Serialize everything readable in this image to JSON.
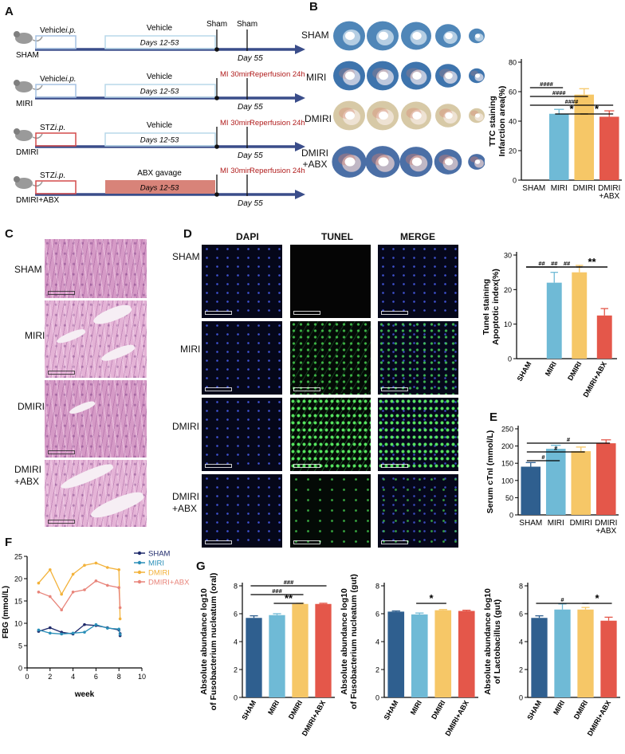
{
  "panel_letters": {
    "a": "A",
    "b": "B",
    "c": "C",
    "d": "D",
    "e": "E",
    "f": "F",
    "g": "G"
  },
  "colors": {
    "sham": "#2f5f8f",
    "miri": "#6fbad6",
    "dmiri": "#f6c767",
    "dmiri_abx": "#e4574a",
    "arrow": "#3a4d8a",
    "red_text": "#b01c1c",
    "f_sham": "#1f2a6b",
    "f_miri": "#2a8fb8",
    "f_dmiri": "#f3b23a",
    "f_dmiriabx": "#e8847a"
  },
  "panel_a": {
    "rows": [
      {
        "group": "SHAM",
        "pre": "Vehicle",
        "pre_route": "i.p.",
        "mid": "Vehicle",
        "days": "Days 12-53",
        "end_top": "Sham",
        "end_top2": "Sham",
        "end_bottom": "Day 55",
        "surgery": "",
        "reperfusion": "",
        "box_style": "outline-blue"
      },
      {
        "group": "MIRI",
        "pre": "Vehicle",
        "pre_route": "i.p.",
        "mid": "Vehicle",
        "days": "Days 12-53",
        "end_top": "",
        "end_top2": "",
        "end_bottom": "Day 55",
        "surgery": "MI 30min",
        "reperfusion": "Reperfusion 24h",
        "box_style": "outline-blue"
      },
      {
        "group": "DMIRI",
        "pre": "STZ",
        "pre_route": "i.p.",
        "mid": "Vehicle",
        "days": "Days 12-53",
        "end_top": "",
        "end_top2": "",
        "end_bottom": "Day 55",
        "surgery": "MI 30min",
        "reperfusion": "Reperfusion 24h",
        "box_style": "outline-red"
      },
      {
        "group": "DMIRI+ABX",
        "pre": "STZ",
        "pre_route": "i.p.",
        "mid": "ABX gavage",
        "days": "Days 12-53",
        "end_top": "",
        "end_top2": "",
        "end_bottom": "Day 55",
        "surgery": "MI 30min",
        "reperfusion": "Reperfusion 24h",
        "box_style": "filled-red"
      }
    ]
  },
  "panel_b": {
    "row_labels": [
      "SHAM",
      "MIRI",
      "DMIRI",
      "DMIRI\n+ABX"
    ]
  },
  "panel_c": {
    "row_labels": [
      "SHAM",
      "MIRI",
      "DMIRI",
      "DMIRI\n+ABX"
    ]
  },
  "panel_d": {
    "column_headers": [
      {
        "label": "DAPI",
        "color": "#2f9bd6"
      },
      {
        "label": "TUNEL",
        "color": "#2fae5a"
      },
      {
        "label": "MERGE",
        "color": "#111111"
      }
    ],
    "row_labels": [
      "SHAM",
      "MIRI",
      "DMIRI",
      "DMIRI\n+ABX"
    ]
  },
  "chart_data": [
    {
      "id": "b",
      "type": "bar",
      "ylabel": "TTC staining\nInfarction area(%)",
      "categories": [
        "SHAM",
        "MIRI",
        "DMIRI",
        "DMIRI\n+ABX"
      ],
      "values": [
        0,
        45,
        58,
        43
      ],
      "errors": [
        0,
        3,
        4,
        4
      ],
      "ylim": [
        0,
        80
      ],
      "yticks": [
        0,
        20,
        40,
        60,
        80
      ],
      "significance": [
        {
          "from": 1,
          "to": 2,
          "label": "*",
          "level": 4
        },
        {
          "from": 2,
          "to": 3,
          "label": "*",
          "level": 4
        },
        {
          "from": 0,
          "to": 3,
          "label": "####",
          "level": 3
        },
        {
          "from": 0,
          "to": 2,
          "label": "####",
          "level": 2
        },
        {
          "from": 0,
          "to": 1,
          "label": "####",
          "level": 1
        }
      ]
    },
    {
      "id": "d",
      "type": "bar",
      "ylabel": "Tunel staining\nApoptotic index(%)",
      "categories": [
        "SHAM",
        "MIRI",
        "DMIRI",
        "DMIRI+ABX"
      ],
      "values": [
        0,
        22,
        25,
        12.5
      ],
      "errors": [
        0,
        3,
        2,
        2
      ],
      "ylim": [
        0,
        30
      ],
      "yticks": [
        0,
        10,
        20,
        30
      ],
      "significance": [
        {
          "from": 0,
          "to": 3,
          "label": "##",
          "level": 3
        },
        {
          "from": 0,
          "to": 2,
          "label": "##",
          "level": 2
        },
        {
          "from": 2,
          "to": 3,
          "label": "**",
          "level": 2
        },
        {
          "from": 0,
          "to": 1,
          "label": "##",
          "level": 1
        }
      ]
    },
    {
      "id": "e",
      "type": "bar",
      "ylabel": "Serum cTnI (mmol/L)",
      "categories": [
        "SHAM",
        "MIRI",
        "DMIRI",
        "DMIRI\n+ABX"
      ],
      "values": [
        140,
        192,
        185,
        208
      ],
      "errors": [
        12,
        10,
        12,
        10
      ],
      "ylim": [
        0,
        250
      ],
      "yticks": [
        0,
        50,
        100,
        150,
        200,
        250
      ],
      "significance": [
        {
          "from": 0,
          "to": 3,
          "label": "#",
          "level": 3
        },
        {
          "from": 0,
          "to": 2,
          "label": "#",
          "level": 2
        },
        {
          "from": 0,
          "to": 1,
          "label": "#",
          "level": 1
        }
      ]
    },
    {
      "id": "f",
      "type": "line",
      "xlabel": "week",
      "ylabel": "FBG (mmol/L)",
      "xlim": [
        0,
        10
      ],
      "ylim": [
        0,
        25
      ],
      "xticks": [
        0,
        2,
        4,
        6,
        8,
        10
      ],
      "yticks": [
        0,
        5,
        10,
        15,
        20,
        25
      ],
      "legend_position": "top-right",
      "series": [
        {
          "name": "SHAM",
          "color_key": "f_sham",
          "x": [
            1,
            2,
            3,
            4,
            5,
            6,
            7,
            8,
            8.1,
            8.1
          ],
          "y": [
            8.2,
            9,
            8,
            7.6,
            9.7,
            9.5,
            9,
            8.5,
            7.7,
            7.2
          ]
        },
        {
          "name": "MIRI",
          "color_key": "f_miri",
          "x": [
            1,
            2,
            3,
            4,
            5,
            6,
            7,
            8,
            8.1
          ],
          "y": [
            8.5,
            7.8,
            7.6,
            7.8,
            8,
            9.7,
            8.9,
            8.7,
            7.5
          ]
        },
        {
          "name": "DMIRI",
          "color_key": "f_dmiri",
          "x": [
            1,
            2,
            3,
            4,
            5,
            6,
            7,
            8,
            8.1
          ],
          "y": [
            19,
            22,
            16.5,
            21,
            23,
            23.5,
            22.5,
            22,
            11
          ]
        },
        {
          "name": "DMIRI+ABX",
          "color_key": "f_dmiriabx",
          "x": [
            1,
            2,
            3,
            4,
            5,
            6,
            7,
            8,
            8.1
          ],
          "y": [
            17,
            16,
            13,
            17,
            17.5,
            19.5,
            18.5,
            18,
            13.5
          ]
        }
      ]
    },
    {
      "id": "g1",
      "type": "bar",
      "ylabel": "Absolute abundance log10\nof Fusobacterium nucleatum (oral)",
      "categories": [
        "SHAM",
        "MIRI",
        "DMIRI",
        "DMIRI+ABX"
      ],
      "values": [
        5.7,
        5.9,
        6.7,
        6.7
      ],
      "errors": [
        0.15,
        0.1,
        0.05,
        0.05
      ],
      "ylim": [
        0,
        8
      ],
      "yticks": [
        0,
        2,
        4,
        6,
        8
      ],
      "significance": [
        {
          "from": 0,
          "to": 3,
          "label": "###",
          "level": 3
        },
        {
          "from": 0,
          "to": 2,
          "label": "###",
          "level": 2
        },
        {
          "from": 1,
          "to": 2,
          "label": "**",
          "level": 1
        }
      ]
    },
    {
      "id": "g2",
      "type": "bar",
      "ylabel": "Absolute abundance log10\nof Fusobacterium nucleatum (gut)",
      "categories": [
        "SHAM",
        "MIRI",
        "DMIRI",
        "DMIRI+ABX"
      ],
      "values": [
        6.15,
        5.95,
        6.25,
        6.2
      ],
      "errors": [
        0.05,
        0.1,
        0.05,
        0.05
      ],
      "ylim": [
        0,
        8
      ],
      "yticks": [
        0,
        2,
        4,
        6,
        8
      ],
      "significance": [
        {
          "from": 1,
          "to": 2,
          "label": "*",
          "level": 1
        }
      ]
    },
    {
      "id": "g3",
      "type": "bar",
      "ylabel": "Absolute abundance log10\nof Lactobacillus (gut)",
      "categories": [
        "SHAM",
        "MIRI",
        "DMIRI",
        "DMIRI+ABX"
      ],
      "values": [
        5.7,
        6.3,
        6.3,
        5.5
      ],
      "errors": [
        0.15,
        0.4,
        0.15,
        0.25
      ],
      "ylim": [
        0,
        8
      ],
      "yticks": [
        0,
        2,
        4,
        6,
        8
      ],
      "significance": [
        {
          "from": 0,
          "to": 2,
          "label": "#",
          "level": 1
        },
        {
          "from": 2,
          "to": 3,
          "label": "*",
          "level": 1
        }
      ]
    }
  ]
}
